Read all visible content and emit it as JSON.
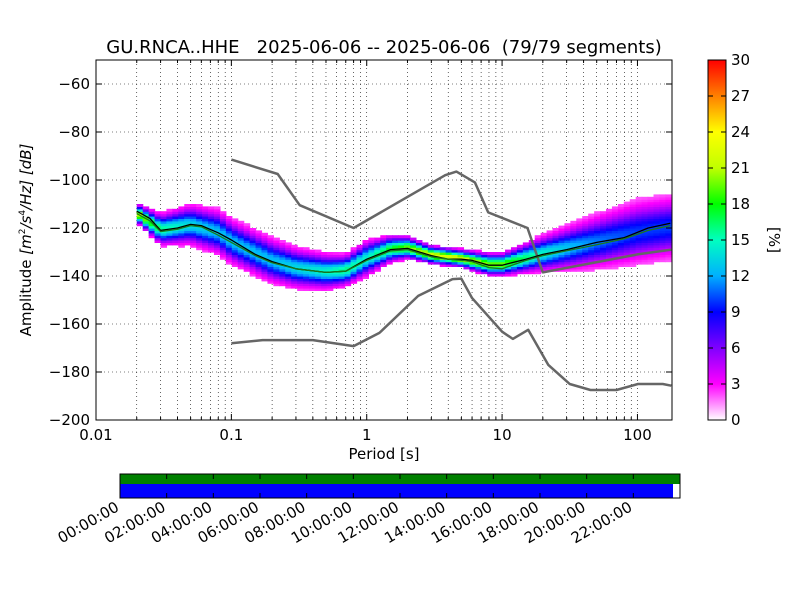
{
  "chart_data": {
    "type": "heatmap",
    "title": "GU.RNCA..HHE   2025-06-06 -- 2025-06-06  (79/79 segments)",
    "xlabel": "Period [s]",
    "ylabel_prefix": "Amplitude",
    "ylabel_unit_base": "[m",
    "ylabel_unit_s": "/s",
    "ylabel_unit_hz": "/Hz] [dB]",
    "ylabel_exp_2": "2",
    "ylabel_exp_4": "4",
    "x_scale": "log",
    "xlim": [
      0.01,
      180
    ],
    "ylim": [
      -200,
      -50
    ],
    "x_ticks": [
      0.01,
      0.1,
      1,
      10,
      100
    ],
    "x_tick_labels": [
      "0.01",
      "0.1",
      "1",
      "10",
      "100"
    ],
    "y_ticks": [
      -200,
      -180,
      -160,
      -140,
      -120,
      -100,
      -80,
      -60
    ],
    "y_tick_labels": [
      "−200",
      "−180",
      "−160",
      "−140",
      "−120",
      "−100",
      "−80",
      "−60"
    ],
    "grid": true,
    "colorbar": {
      "label": "[%]",
      "range": [
        0,
        30
      ],
      "ticks": [
        0,
        3,
        6,
        9,
        12,
        15,
        18,
        21,
        24,
        27,
        30
      ],
      "tick_labels": [
        "0",
        "3",
        "6",
        "9",
        "12",
        "15",
        "18",
        "21",
        "24",
        "27",
        "30"
      ]
    },
    "series": [
      {
        "name": "",
        "role": "new-high-noise-model",
        "color": "#666666",
        "points": [
          [
            0.1,
            -91.5
          ],
          [
            0.22,
            -97.5
          ],
          [
            0.32,
            -110.5
          ],
          [
            0.8,
            -120
          ],
          [
            3.8,
            -98
          ],
          [
            4.6,
            -96.5
          ],
          [
            6.3,
            -101
          ],
          [
            7.9,
            -113.5
          ],
          [
            15.4,
            -120
          ],
          [
            20,
            -138.5
          ],
          [
            100,
            -131
          ],
          [
            178,
            -129
          ]
        ]
      },
      {
        "name": "",
        "role": "new-low-noise-model",
        "color": "#666666",
        "points": [
          [
            0.1,
            -168
          ],
          [
            0.17,
            -166.7
          ],
          [
            0.4,
            -166.7
          ],
          [
            0.8,
            -169.2
          ],
          [
            1.24,
            -163.7
          ],
          [
            2.4,
            -148.3
          ],
          [
            4.3,
            -141.3
          ],
          [
            5,
            -141.1
          ],
          [
            6,
            -149.2
          ],
          [
            10,
            -163.2
          ],
          [
            12,
            -166.2
          ],
          [
            15.6,
            -162.4
          ],
          [
            21.9,
            -177
          ],
          [
            31.6,
            -185
          ],
          [
            45,
            -187.5
          ],
          [
            70,
            -187.5
          ],
          [
            101,
            -185
          ],
          [
            154,
            -185
          ],
          [
            178,
            -185.7
          ]
        ]
      },
      {
        "name": "",
        "role": "mode",
        "color": "#000000",
        "points": [
          [
            0.02,
            -113
          ],
          [
            0.025,
            -116
          ],
          [
            0.03,
            -121
          ],
          [
            0.04,
            -120
          ],
          [
            0.05,
            -118.5
          ],
          [
            0.06,
            -119
          ],
          [
            0.08,
            -122
          ],
          [
            0.1,
            -125
          ],
          [
            0.15,
            -131
          ],
          [
            0.2,
            -134
          ],
          [
            0.3,
            -137
          ],
          [
            0.5,
            -138.5
          ],
          [
            0.7,
            -138
          ],
          [
            1,
            -133
          ],
          [
            1.5,
            -129
          ],
          [
            2,
            -128.5
          ],
          [
            3,
            -131.5
          ],
          [
            4,
            -133
          ],
          [
            5,
            -133
          ],
          [
            6,
            -133.5
          ],
          [
            8,
            -135.5
          ],
          [
            10,
            -135.5
          ],
          [
            15,
            -133
          ],
          [
            20,
            -131
          ],
          [
            30,
            -129
          ],
          [
            50,
            -126
          ],
          [
            80,
            -124
          ],
          [
            120,
            -120
          ],
          [
            175,
            -118
          ]
        ]
      },
      {
        "name": "",
        "role": "mean",
        "color": "#1a7a1a",
        "points": [
          [
            0.02,
            -114
          ],
          [
            0.025,
            -117
          ],
          [
            0.03,
            -121.5
          ],
          [
            0.04,
            -120.5
          ],
          [
            0.05,
            -119
          ],
          [
            0.06,
            -119.5
          ],
          [
            0.08,
            -123
          ],
          [
            0.1,
            -126
          ],
          [
            0.15,
            -131.5
          ],
          [
            0.2,
            -134.5
          ],
          [
            0.3,
            -137
          ],
          [
            0.5,
            -138.5
          ],
          [
            0.7,
            -138
          ],
          [
            1,
            -133.5
          ],
          [
            1.5,
            -129.5
          ],
          [
            2,
            -129
          ],
          [
            3,
            -132
          ],
          [
            4,
            -133
          ],
          [
            5,
            -133.5
          ],
          [
            6,
            -134
          ],
          [
            8,
            -136.5
          ],
          [
            10,
            -137
          ],
          [
            15,
            -133.5
          ],
          [
            20,
            -131.5
          ],
          [
            30,
            -129.5
          ],
          [
            50,
            -127
          ],
          [
            80,
            -124.5
          ],
          [
            120,
            -121
          ],
          [
            175,
            -119
          ]
        ]
      }
    ],
    "density": [
      {
        "period": 0.02,
        "centre": -114,
        "spread": 4
      },
      {
        "period": 0.03,
        "centre": -121,
        "spread": 7
      },
      {
        "period": 0.05,
        "centre": -119,
        "spread": 9
      },
      {
        "period": 0.08,
        "centre": -122,
        "spread": 10
      },
      {
        "period": 0.1,
        "centre": -126,
        "spread": 10
      },
      {
        "period": 0.2,
        "centre": -134,
        "spread": 10
      },
      {
        "period": 0.3,
        "centre": -137,
        "spread": 9
      },
      {
        "period": 0.5,
        "centre": -138.5,
        "spread": 8
      },
      {
        "period": 0.7,
        "centre": -138,
        "spread": 7
      },
      {
        "period": 1,
        "centre": -133,
        "spread": 8
      },
      {
        "period": 1.5,
        "centre": -129,
        "spread": 6
      },
      {
        "period": 2,
        "centre": -128.5,
        "spread": 5
      },
      {
        "period": 3,
        "centre": -131.5,
        "spread": 4
      },
      {
        "period": 5,
        "centre": -133,
        "spread": 4
      },
      {
        "period": 8,
        "centre": -135.5,
        "spread": 5
      },
      {
        "period": 10,
        "centre": -135.5,
        "spread": 5
      },
      {
        "period": 20,
        "centre": -131,
        "spread": 8
      },
      {
        "period": 50,
        "centre": -126,
        "spread": 12
      },
      {
        "period": 100,
        "centre": -122,
        "spread": 14
      },
      {
        "period": 178,
        "centre": -120,
        "spread": 14
      }
    ]
  },
  "timeline": {
    "tick_labels": [
      "00:00:00",
      "02:00:00",
      "04:00:00",
      "06:00:00",
      "08:00:00",
      "10:00:00",
      "12:00:00",
      "14:00:00",
      "16:00:00",
      "18:00:00",
      "20:00:00",
      "22:00:00"
    ],
    "tick_hours": [
      0,
      2,
      4,
      6,
      8,
      10,
      12,
      14,
      16,
      18,
      20,
      22
    ],
    "span_hours": 24,
    "data_fraction": 1.0,
    "segments_fraction": 0.9875,
    "data_color": "#008000",
    "segments_color": "#0000ff"
  }
}
